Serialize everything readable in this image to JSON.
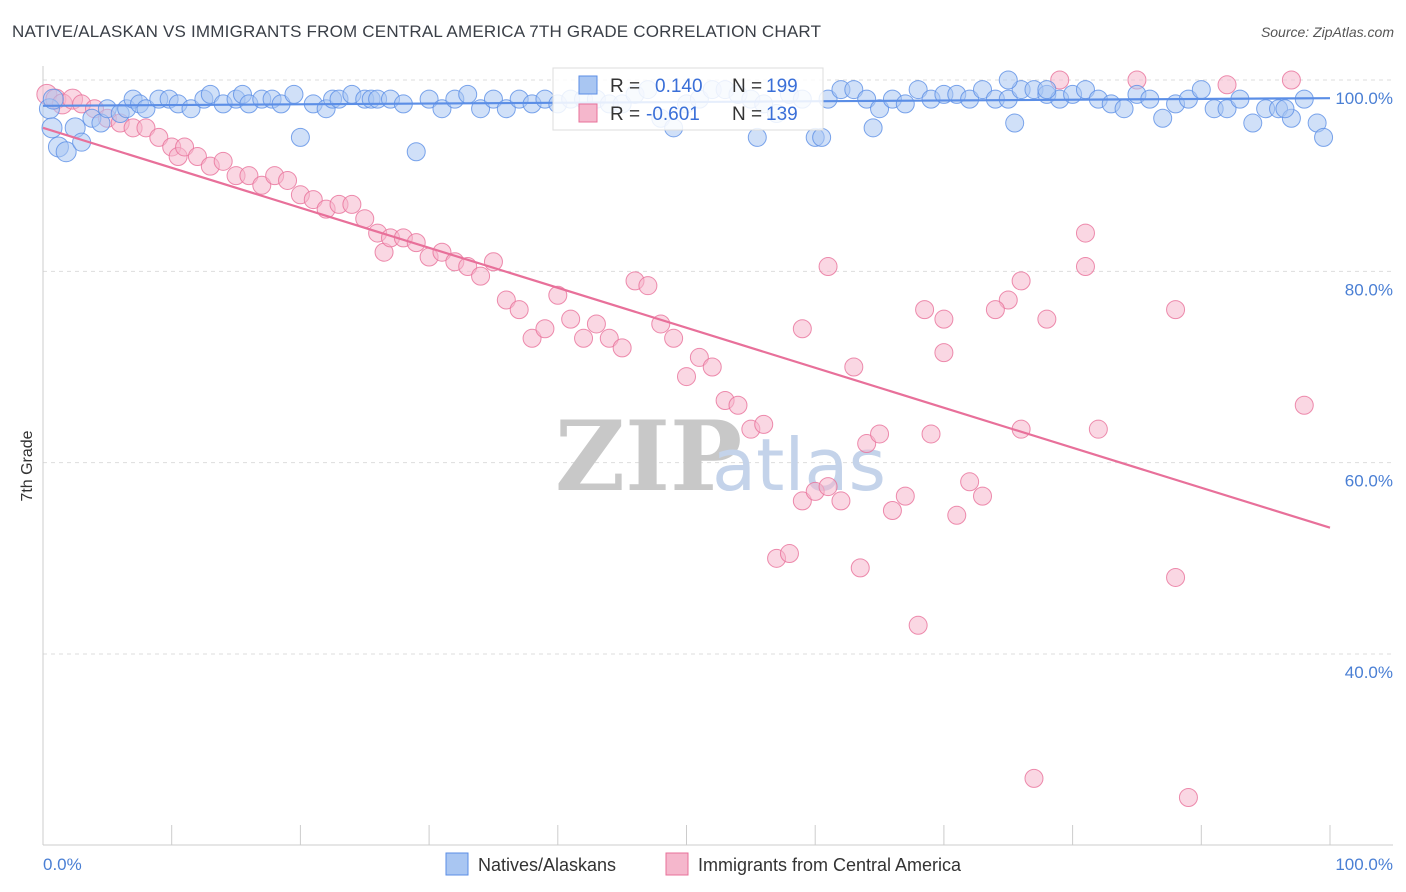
{
  "title": "NATIVE/ALASKAN VS IMMIGRANTS FROM CENTRAL AMERICA 7TH GRADE CORRELATION CHART",
  "source": "Source: ZipAtlas.com",
  "watermark": {
    "zip": "ZIP",
    "atlas": "atlas"
  },
  "colors": {
    "blue": "#5b8ee6",
    "blue_fill": "#a9c6f2",
    "pink": "#e8709a",
    "pink_fill": "#f5b7cc",
    "grid": "#dddddd",
    "tick_text": "#4a7fd4"
  },
  "stats": {
    "r_label": "R =",
    "n_label": "N =",
    "blue": {
      "r": "0.140",
      "n": "199"
    },
    "pink": {
      "r": "-0.601",
      "n": "139"
    }
  },
  "legend": {
    "blue": "Natives/Alaskans",
    "pink": "Immigrants from Central America"
  },
  "chart_data": {
    "type": "scatter",
    "title": "NATIVE/ALASKAN VS IMMIGRANTS FROM CENTRAL AMERICA 7TH GRADE CORRELATION CHART",
    "xlabel": "",
    "ylabel": "7th Grade",
    "xlim": [
      0,
      100
    ],
    "ylim": [
      20,
      102
    ],
    "x_tick_labels": {
      "left": "0.0%",
      "right": "100.0%"
    },
    "y_ticks": [
      {
        "value": 100,
        "label": "100.0%"
      },
      {
        "value": 80,
        "label": "80.0%"
      },
      {
        "value": 60,
        "label": "60.0%"
      },
      {
        "value": 40,
        "label": "40.0%"
      }
    ],
    "series": [
      {
        "name": "Natives/Alaskans",
        "r": 0.14,
        "n": 199,
        "trend": {
          "x": [
            0,
            100
          ],
          "y": [
            97.3,
            98.1
          ]
        },
        "points": [
          [
            0.5,
            97
          ],
          [
            0.7,
            95
          ],
          [
            0.8,
            98
          ],
          [
            1.2,
            93
          ],
          [
            1.8,
            92.5
          ],
          [
            2.5,
            95
          ],
          [
            3,
            93.5
          ],
          [
            3.8,
            96
          ],
          [
            4.5,
            95.5
          ],
          [
            5,
            97
          ],
          [
            6,
            96.5
          ],
          [
            6.5,
            97
          ],
          [
            7,
            98
          ],
          [
            7.5,
            97.5
          ],
          [
            8,
            97
          ],
          [
            9,
            98
          ],
          [
            9.8,
            98
          ],
          [
            10.5,
            97.5
          ],
          [
            11.5,
            97
          ],
          [
            12.5,
            98
          ],
          [
            13,
            98.5
          ],
          [
            14,
            97.5
          ],
          [
            15,
            98
          ],
          [
            15.5,
            98.5
          ],
          [
            16,
            97.5
          ],
          [
            17,
            98
          ],
          [
            17.8,
            98
          ],
          [
            18.5,
            97.5
          ],
          [
            19.5,
            98.5
          ],
          [
            20,
            94
          ],
          [
            21,
            97.5
          ],
          [
            22,
            97
          ],
          [
            22.5,
            98
          ],
          [
            23,
            98
          ],
          [
            24,
            98.5
          ],
          [
            25,
            98
          ],
          [
            25.5,
            98
          ],
          [
            26,
            98
          ],
          [
            27,
            98
          ],
          [
            28,
            97.5
          ],
          [
            29,
            92.5
          ],
          [
            30,
            98
          ],
          [
            31,
            97
          ],
          [
            32,
            98
          ],
          [
            33,
            98.5
          ],
          [
            34,
            97
          ],
          [
            35,
            98
          ],
          [
            36,
            97
          ],
          [
            37,
            98
          ],
          [
            38,
            97.5
          ],
          [
            39,
            98
          ],
          [
            40,
            97.5
          ],
          [
            41,
            98
          ],
          [
            42,
            98
          ],
          [
            43,
            98
          ],
          [
            44,
            97.5
          ],
          [
            45,
            97.5
          ],
          [
            46,
            98.5
          ],
          [
            47,
            99
          ],
          [
            48,
            96
          ],
          [
            49,
            95
          ],
          [
            50,
            97.5
          ],
          [
            51,
            98
          ],
          [
            52,
            99
          ],
          [
            53,
            99
          ],
          [
            54,
            98.5
          ],
          [
            55,
            98
          ],
          [
            55.5,
            94
          ],
          [
            56,
            97.5
          ],
          [
            57,
            96.5
          ],
          [
            58,
            98.5
          ],
          [
            59,
            98
          ],
          [
            60,
            94
          ],
          [
            61,
            98
          ],
          [
            62,
            99
          ],
          [
            63,
            99
          ],
          [
            64,
            98
          ],
          [
            65,
            97
          ],
          [
            66,
            98
          ],
          [
            67,
            97.5
          ],
          [
            68,
            99
          ],
          [
            69,
            98
          ],
          [
            70,
            98.5
          ],
          [
            71,
            98.5
          ],
          [
            72,
            98
          ],
          [
            73,
            99
          ],
          [
            74,
            98
          ],
          [
            75,
            98
          ],
          [
            75.5,
            95.5
          ],
          [
            76,
            99
          ],
          [
            77,
            99
          ],
          [
            78,
            98.5
          ],
          [
            79,
            98
          ],
          [
            80,
            98.5
          ],
          [
            81,
            99
          ],
          [
            82,
            98
          ],
          [
            83,
            97.5
          ],
          [
            84,
            97
          ],
          [
            85,
            98.5
          ],
          [
            86,
            98
          ],
          [
            87,
            96
          ],
          [
            88,
            97.5
          ],
          [
            89,
            98
          ],
          [
            90,
            99
          ],
          [
            91,
            97
          ],
          [
            92,
            97
          ],
          [
            93,
            98
          ],
          [
            94,
            95.5
          ],
          [
            95,
            97
          ],
          [
            96,
            97
          ],
          [
            97,
            96
          ],
          [
            98,
            98
          ],
          [
            99,
            95.5
          ],
          [
            99.5,
            94
          ],
          [
            64.5,
            95
          ],
          [
            60.5,
            94
          ],
          [
            75,
            100
          ],
          [
            78,
            99
          ],
          [
            96.5,
            97
          ]
        ]
      },
      {
        "name": "Immigrants from Central America",
        "r": -0.601,
        "n": 139,
        "trend": {
          "x": [
            0,
            100
          ],
          "y": [
            95.0,
            53.2
          ]
        },
        "points": [
          [
            0.3,
            98.5
          ],
          [
            1,
            98
          ],
          [
            1.5,
            97.5
          ],
          [
            2.3,
            98
          ],
          [
            3,
            97.5
          ],
          [
            4,
            97
          ],
          [
            5,
            96
          ],
          [
            6,
            95.5
          ],
          [
            7,
            95
          ],
          [
            8,
            95
          ],
          [
            9,
            94
          ],
          [
            10,
            93
          ],
          [
            10.5,
            92
          ],
          [
            11,
            93
          ],
          [
            12,
            92
          ],
          [
            13,
            91
          ],
          [
            14,
            91.5
          ],
          [
            15,
            90
          ],
          [
            16,
            90
          ],
          [
            17,
            89
          ],
          [
            18,
            90
          ],
          [
            19,
            89.5
          ],
          [
            20,
            88
          ],
          [
            21,
            87.5
          ],
          [
            22,
            86.5
          ],
          [
            23,
            87
          ],
          [
            24,
            87
          ],
          [
            25,
            85.5
          ],
          [
            26,
            84
          ],
          [
            26.5,
            82
          ],
          [
            27,
            83.5
          ],
          [
            28,
            83.5
          ],
          [
            29,
            83
          ],
          [
            30,
            81.5
          ],
          [
            31,
            82
          ],
          [
            32,
            81
          ],
          [
            33,
            80.5
          ],
          [
            34,
            79.5
          ],
          [
            35,
            81
          ],
          [
            36,
            77
          ],
          [
            37,
            76
          ],
          [
            38,
            73
          ],
          [
            39,
            74
          ],
          [
            40,
            77.5
          ],
          [
            41,
            75
          ],
          [
            42,
            73
          ],
          [
            43,
            74.5
          ],
          [
            44,
            73
          ],
          [
            45,
            72
          ],
          [
            46,
            79
          ],
          [
            47,
            78.5
          ],
          [
            48,
            74.5
          ],
          [
            49,
            73
          ],
          [
            50,
            69
          ],
          [
            51,
            71
          ],
          [
            52,
            70
          ],
          [
            53,
            66.5
          ],
          [
            54,
            66
          ],
          [
            55,
            63.5
          ],
          [
            56,
            64
          ],
          [
            57,
            50
          ],
          [
            58,
            50.5
          ],
          [
            59,
            56
          ],
          [
            60,
            57
          ],
          [
            61,
            57.5
          ],
          [
            62,
            56
          ],
          [
            63,
            70
          ],
          [
            63.5,
            49
          ],
          [
            64,
            62
          ],
          [
            65,
            63
          ],
          [
            66,
            55
          ],
          [
            67,
            56.5
          ],
          [
            68,
            43
          ],
          [
            69,
            63
          ],
          [
            70,
            71.5
          ],
          [
            71,
            54.5
          ],
          [
            72,
            58
          ],
          [
            73,
            56.5
          ],
          [
            76,
            63.5
          ],
          [
            77,
            27
          ],
          [
            82,
            63.5
          ],
          [
            88,
            48
          ],
          [
            89,
            25
          ],
          [
            98,
            66
          ],
          [
            97,
            100
          ],
          [
            79,
            100
          ],
          [
            85,
            100
          ],
          [
            92,
            99.5
          ],
          [
            81,
            84
          ],
          [
            81,
            80.5
          ],
          [
            78,
            75
          ],
          [
            76,
            79
          ],
          [
            61,
            80.5
          ],
          [
            75,
            77
          ],
          [
            88,
            76
          ],
          [
            59,
            74
          ],
          [
            68.5,
            76
          ],
          [
            70,
            75
          ],
          [
            74,
            76
          ]
        ]
      }
    ]
  }
}
